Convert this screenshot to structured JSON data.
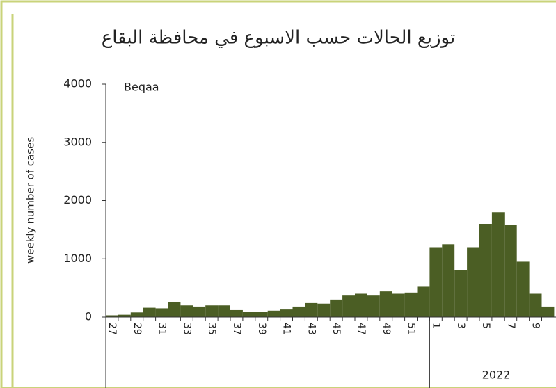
{
  "chart_data": {
    "type": "bar",
    "title": "توزيع الحالات حسب الاسبوع في محافظة البقاع",
    "annotation": "Beqaa",
    "y_label": "weekly number of cases",
    "year_label": "2022",
    "color": "#4b5e24",
    "categories": [
      "27",
      null,
      "29",
      null,
      "31",
      null,
      "33",
      null,
      "35",
      null,
      "37",
      null,
      "39",
      null,
      "41",
      null,
      "43",
      null,
      "45",
      null,
      "47",
      null,
      "49",
      null,
      "51",
      null,
      "1",
      null,
      "3",
      null,
      "5",
      null,
      "7",
      null,
      "9",
      null
    ],
    "values": [
      30,
      40,
      80,
      160,
      150,
      260,
      200,
      180,
      200,
      200,
      120,
      90,
      90,
      110,
      130,
      180,
      240,
      230,
      300,
      380,
      400,
      380,
      440,
      400,
      420,
      520,
      1200,
      1250,
      800,
      1200,
      1600,
      1800,
      1580,
      950,
      400,
      180
    ],
    "ylim": [
      0,
      4000
    ],
    "yticks": [
      0,
      1000,
      2000,
      3000,
      4000
    ]
  }
}
